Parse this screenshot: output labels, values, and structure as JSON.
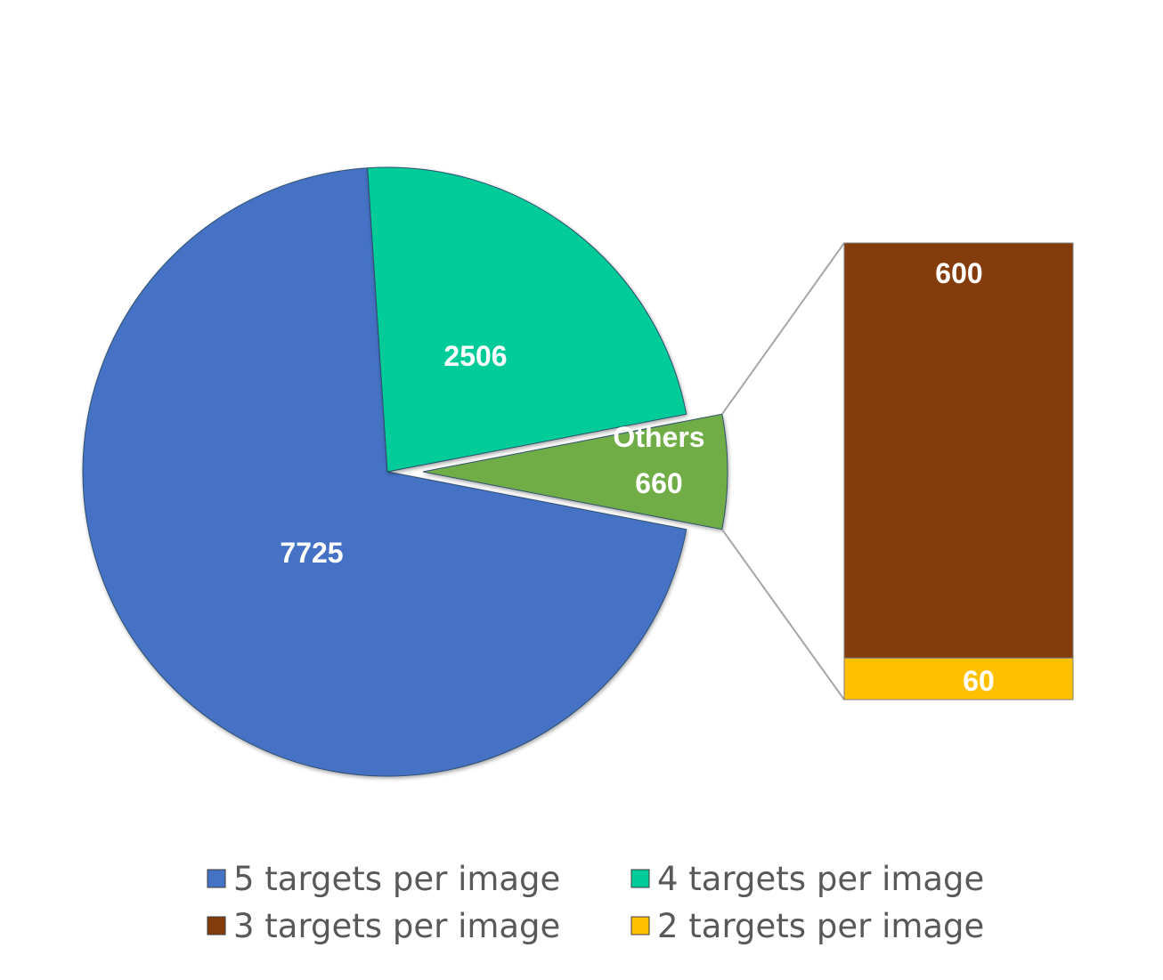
{
  "chart_data": {
    "type": "pie",
    "variant": "bar-of-pie",
    "pie": {
      "slices": [
        {
          "key": "five",
          "value": 7725,
          "label": "7725",
          "color": "#4472C4"
        },
        {
          "key": "four",
          "value": 2506,
          "label": "2506",
          "color": "#00CC99"
        },
        {
          "key": "others",
          "value": 660,
          "name": "Others",
          "label": "660",
          "color": "#70AD47",
          "exploded": true
        }
      ]
    },
    "bar": {
      "stack": [
        {
          "key": "three",
          "value": 600,
          "label": "600",
          "color": "#843C0C"
        },
        {
          "key": "two",
          "value": 60,
          "label": "60",
          "color": "#FFC000"
        }
      ]
    },
    "legend": {
      "placement": "bottom",
      "entries": [
        {
          "label": "5 targets per image",
          "color": "#4472C4"
        },
        {
          "label": "4 targets per image",
          "color": "#00CC99"
        },
        {
          "label": "3 targets per image",
          "color": "#843C0C"
        },
        {
          "label": "2 targets per image",
          "color": "#FFC000"
        }
      ]
    }
  }
}
